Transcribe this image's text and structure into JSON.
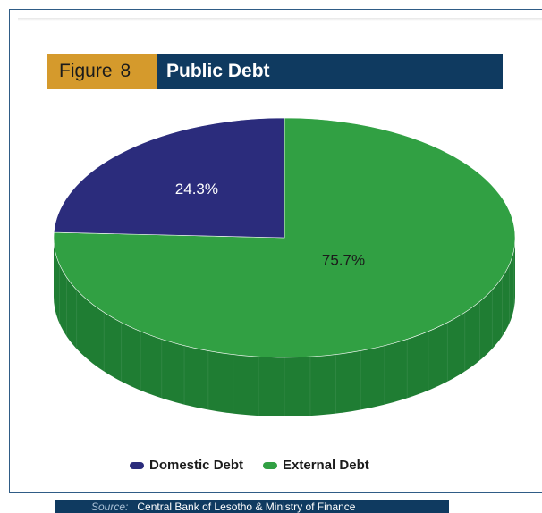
{
  "figure": {
    "label": "Figure",
    "number": "8",
    "title": "Public Debt"
  },
  "source": {
    "label": "Source:",
    "text": "Central Bank of Lesotho & Ministry of Finance"
  },
  "colors": {
    "domestic": "#2b2c7c",
    "external": "#31a043",
    "external_side": "#1f7d33",
    "domestic_side": "#1d1e5c",
    "figure_label": "#d59a2c",
    "title_bar": "#0f3a60"
  },
  "chart_data": {
    "type": "pie",
    "title": "Public Debt",
    "series": [
      {
        "name": "Domestic Debt",
        "value": 24.3,
        "label": "24.3%"
      },
      {
        "name": "External Debt",
        "value": 75.7,
        "label": "75.7%"
      }
    ],
    "legend_position": "bottom",
    "style": "3d"
  }
}
